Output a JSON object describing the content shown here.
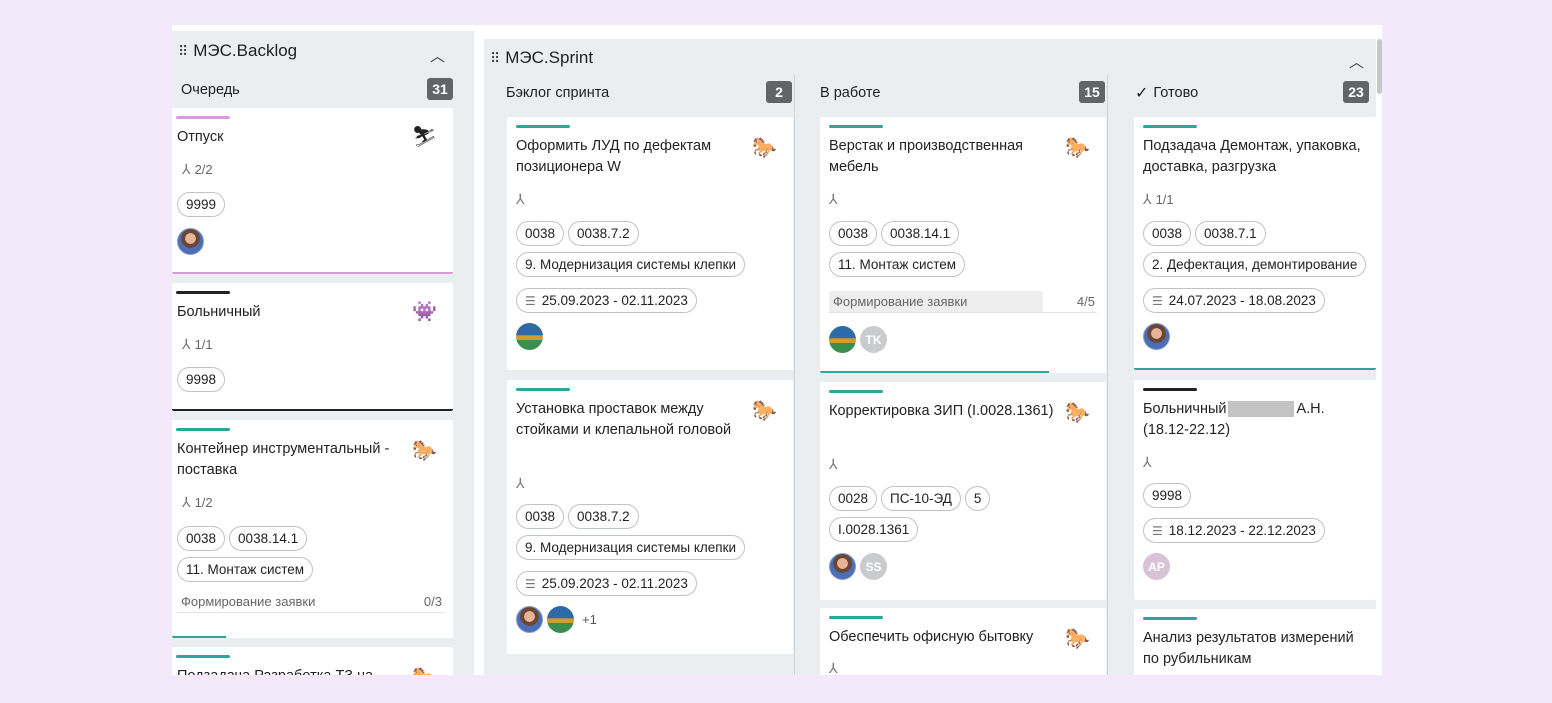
{
  "colors": {
    "page_bg": "#f4e9fb",
    "board_bg": "#ebeef0",
    "teal": "#2aa69a",
    "pink": "#d59bdd",
    "black": "#222222",
    "count_badge": "#626466"
  },
  "backlog": {
    "title": "МЭС.Backlog",
    "column": {
      "name": "Очередь",
      "count": "31"
    },
    "cards": [
      {
        "title": "Отпуск",
        "icon": "skier-icon",
        "subtasks": "2/2",
        "tags": [
          "9999"
        ]
      },
      {
        "title": "Больничный",
        "icon": "space-invader-icon",
        "subtasks": "1/1",
        "tags": [
          "9998"
        ]
      },
      {
        "title": "Контейнер инструментальный - поставка",
        "icon": "horse-icon",
        "subtasks": "1/2",
        "tags": [
          "0038",
          "0038.14.1"
        ],
        "tags2": [
          "11. Монтаж систем"
        ],
        "checklist": {
          "label": "Формирование заявки",
          "count": "0/3",
          "fraction": 0
        }
      },
      {
        "title": "Подзадача Разработка ТЗ на",
        "icon": "horse-icon"
      }
    ]
  },
  "sprint": {
    "title": "МЭС.Sprint",
    "columns": [
      {
        "name": "Бэклог спринта",
        "count": "2",
        "cards": [
          {
            "title": "Оформить ЛУД по дефектам позиционера W",
            "tags": [
              "0038",
              "0038.7.2"
            ],
            "tags2": [
              "9. Модернизация системы клепки"
            ],
            "date": "25.09.2023 - 02.11.2023"
          },
          {
            "title": "Установка проставок между стойками и клепальной головой",
            "tags": [
              "0038",
              "0038.7.2"
            ],
            "tags2": [
              "9. Модернизация системы клепки"
            ],
            "date": "25.09.2023 - 02.11.2023",
            "more": "+1"
          }
        ]
      },
      {
        "name": "В работе",
        "count": "15",
        "cards": [
          {
            "title": "Верстак и производственная мебель",
            "tags": [
              "0038",
              "0038.14.1"
            ],
            "tags2": [
              "11. Монтаж систем"
            ],
            "checklist": {
              "label": "Формирование заявки",
              "count": "4/5",
              "fraction": 0.8
            },
            "initials": "TK"
          },
          {
            "title": "Корректировка ЗИП (I.0028.1361)",
            "tags": [
              "0028",
              "ПС-10-ЭД",
              "5"
            ],
            "tags2": [
              "I.0028.1361"
            ],
            "initials": "SS"
          },
          {
            "title": "Обеспечить офисную бытовку"
          }
        ]
      },
      {
        "name": "Готово",
        "count": "23",
        "check": "✓",
        "cards": [
          {
            "title": "Подзадача Демонтаж, упаковка, доставка, разгрузка",
            "subtasks": "1/1",
            "tags": [
              "0038",
              "0038.7.1"
            ],
            "tags2": [
              "2. Дефектация, демонтирование"
            ],
            "date": "24.07.2023 - 18.08.2023"
          },
          {
            "title_a": "Больничный",
            "title_b": "А.Н.",
            "title_c": "(18.12-22.12)",
            "tags": [
              "9998"
            ],
            "date": "18.12.2023 - 22.12.2023",
            "initials": "AP"
          },
          {
            "title": "Анализ результатов измерений по рубильникам"
          }
        ]
      }
    ]
  }
}
